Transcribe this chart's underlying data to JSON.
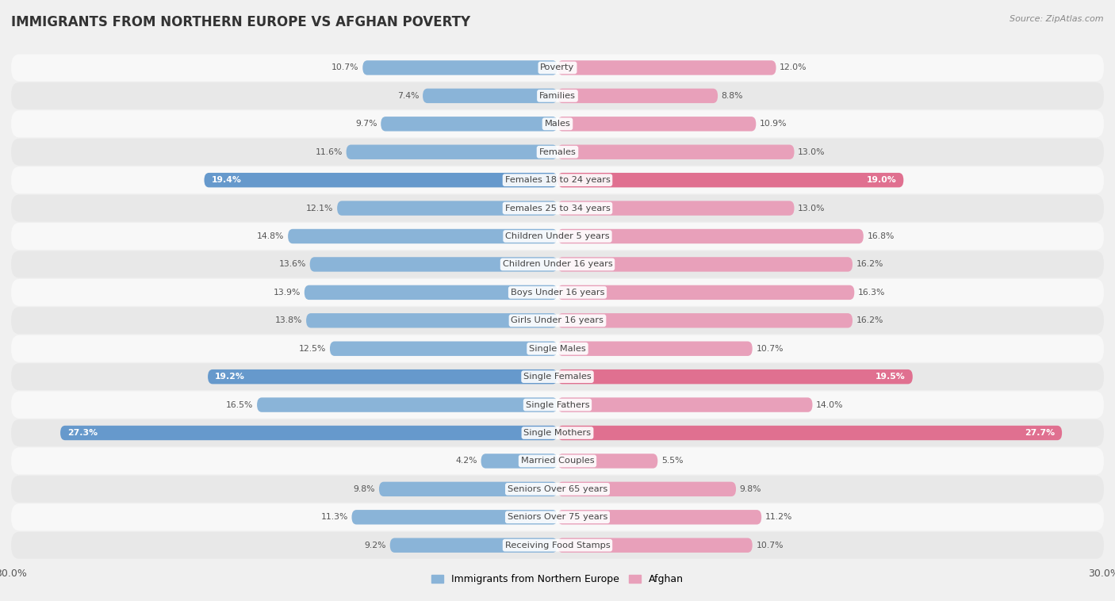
{
  "title": "IMMIGRANTS FROM NORTHERN EUROPE VS AFGHAN POVERTY",
  "source": "Source: ZipAtlas.com",
  "categories": [
    "Poverty",
    "Families",
    "Males",
    "Females",
    "Females 18 to 24 years",
    "Females 25 to 34 years",
    "Children Under 5 years",
    "Children Under 16 years",
    "Boys Under 16 years",
    "Girls Under 16 years",
    "Single Males",
    "Single Females",
    "Single Fathers",
    "Single Mothers",
    "Married Couples",
    "Seniors Over 65 years",
    "Seniors Over 75 years",
    "Receiving Food Stamps"
  ],
  "left_values": [
    10.7,
    7.4,
    9.7,
    11.6,
    19.4,
    12.1,
    14.8,
    13.6,
    13.9,
    13.8,
    12.5,
    19.2,
    16.5,
    27.3,
    4.2,
    9.8,
    11.3,
    9.2
  ],
  "right_values": [
    12.0,
    8.8,
    10.9,
    13.0,
    19.0,
    13.0,
    16.8,
    16.2,
    16.3,
    16.2,
    10.7,
    19.5,
    14.0,
    27.7,
    5.5,
    9.8,
    11.2,
    10.7
  ],
  "left_color": "#8ab4d8",
  "right_color": "#e8a0ba",
  "highlight_left_color": "#6699cc",
  "highlight_right_color": "#e07090",
  "highlight_rows": [
    4,
    11,
    13
  ],
  "axis_max": 30.0,
  "bg_color": "#f0f0f0",
  "row_bg_light": "#f8f8f8",
  "row_bg_dark": "#e8e8e8",
  "legend_left": "Immigrants from Northern Europe",
  "legend_right": "Afghan",
  "title_fontsize": 12,
  "label_fontsize": 8.2,
  "value_fontsize": 7.8
}
